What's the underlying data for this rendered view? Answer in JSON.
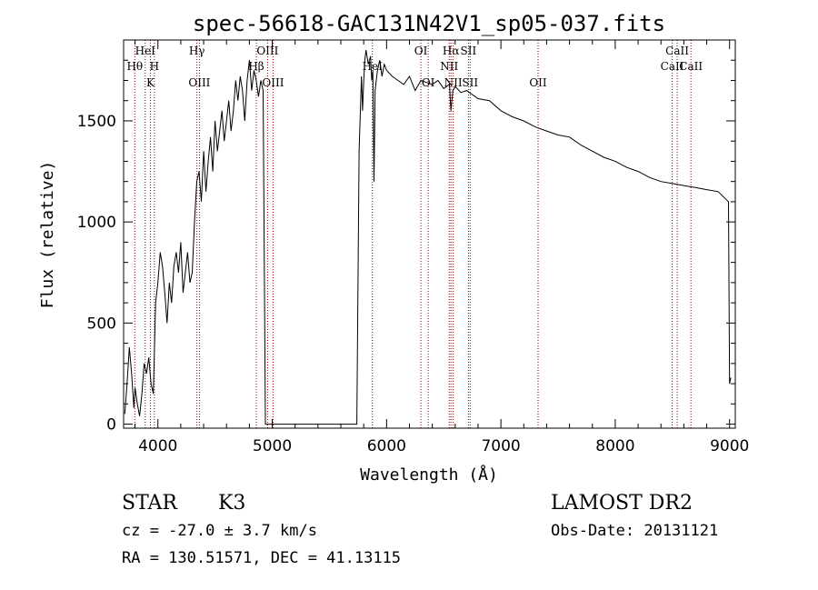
{
  "chart_data": {
    "type": "line",
    "title": "spec-56618-GAC131N42V1_sp05-037.fits",
    "xlabel": "Wavelength (Å)",
    "ylabel": "Flux (relative)",
    "xlim": [
      3700,
      9050
    ],
    "ylim": [
      -20,
      1900
    ],
    "x_ticks": [
      4000,
      5000,
      6000,
      7000,
      8000,
      9000
    ],
    "y_ticks": [
      0,
      500,
      1000,
      1500
    ],
    "line_color": "#000000",
    "marker_color": "#8b0000",
    "grid": false,
    "series": [
      {
        "x": [
          3710,
          3730,
          3750,
          3770,
          3790,
          3800,
          3820,
          3840,
          3860,
          3880,
          3900,
          3920,
          3940,
          3960,
          3980,
          4000,
          4020,
          4040,
          4060,
          4080,
          4100,
          4120,
          4140,
          4160,
          4180,
          4200,
          4220,
          4240,
          4260,
          4280,
          4300,
          4320,
          4340,
          4360,
          4380,
          4400,
          4420,
          4440,
          4460,
          4480,
          4500,
          4520,
          4540,
          4560,
          4580,
          4600,
          4620,
          4640,
          4660,
          4680,
          4700,
          4720,
          4740,
          4760,
          4780,
          4800,
          4820,
          4840,
          4860,
          4880,
          4900,
          4920,
          4940,
          5000,
          5200,
          5400,
          5600,
          5740,
          5760,
          5780,
          5790,
          5800,
          5810,
          5820,
          5840,
          5860,
          5870,
          5880,
          5890,
          5900,
          5920,
          5940,
          5960,
          5980,
          6000,
          6050,
          6100,
          6150,
          6200,
          6250,
          6300,
          6350,
          6400,
          6450,
          6500,
          6550,
          6563,
          6580,
          6600,
          6650,
          6700,
          6800,
          6900,
          7000,
          7100,
          7200,
          7300,
          7400,
          7500,
          7600,
          7700,
          7800,
          7900,
          8000,
          8100,
          8200,
          8300,
          8400,
          8500,
          8600,
          8700,
          8800,
          8900,
          8990,
          9000,
          9010
        ],
        "y": [
          50,
          200,
          380,
          250,
          80,
          180,
          100,
          40,
          150,
          300,
          250,
          330,
          200,
          150,
          600,
          700,
          850,
          780,
          650,
          500,
          700,
          600,
          780,
          850,
          750,
          900,
          650,
          750,
          850,
          700,
          750,
          1000,
          1200,
          1250,
          1100,
          1350,
          1150,
          1300,
          1420,
          1250,
          1500,
          1350,
          1450,
          1550,
          1400,
          1500,
          1600,
          1450,
          1550,
          1700,
          1600,
          1720,
          1650,
          1500,
          1700,
          1800,
          1650,
          1750,
          1700,
          1620,
          1700,
          1650,
          0,
          0,
          0,
          0,
          0,
          0,
          1350,
          1720,
          1550,
          1700,
          1800,
          1850,
          1780,
          1820,
          1700,
          1750,
          1200,
          1650,
          1750,
          1800,
          1720,
          1780,
          1750,
          1720,
          1700,
          1680,
          1720,
          1650,
          1700,
          1690,
          1680,
          1700,
          1660,
          1680,
          1550,
          1650,
          1670,
          1640,
          1650,
          1610,
          1600,
          1550,
          1520,
          1500,
          1470,
          1450,
          1430,
          1420,
          1380,
          1350,
          1320,
          1300,
          1270,
          1250,
          1220,
          1200,
          1190,
          1180,
          1170,
          1160,
          1150,
          1100,
          200,
          230
        ]
      }
    ],
    "line_markers": [
      {
        "x": 3798,
        "label": "Hθ",
        "row": 1
      },
      {
        "x": 3889,
        "label": "HeI",
        "row": 0
      },
      {
        "x": 3934,
        "label": "K",
        "row": 2
      },
      {
        "x": 3969,
        "label": "H",
        "row": 1
      },
      {
        "x": 4341,
        "label": "Hγ",
        "row": 0
      },
      {
        "x": 4363,
        "label": "OIII",
        "row": 2
      },
      {
        "x": 4861,
        "label": "Hβ",
        "row": 1
      },
      {
        "x": 4959,
        "label": "OIII",
        "row": 0
      },
      {
        "x": 5007,
        "label": "OIII",
        "row": 2
      },
      {
        "x": 5876,
        "label": "HeI",
        "row": 1
      },
      {
        "x": 6300,
        "label": "OI",
        "row": 0
      },
      {
        "x": 6364,
        "label": "OI",
        "row": 2
      },
      {
        "x": 6548,
        "label": "NII",
        "row": 1
      },
      {
        "x": 6563,
        "label": "Hα",
        "row": 0
      },
      {
        "x": 6583,
        "label": "NII",
        "row": 2
      },
      {
        "x": 6716,
        "label": "SII",
        "row": 0
      },
      {
        "x": 6731,
        "label": "SII",
        "row": 2
      },
      {
        "x": 7325,
        "label": "OII",
        "row": 2
      },
      {
        "x": 8498,
        "label": "CaII",
        "row": 1
      },
      {
        "x": 8542,
        "label": "CaII",
        "row": 0
      },
      {
        "x": 8662,
        "label": "CaII",
        "row": 1
      }
    ]
  },
  "info": {
    "class_label": "STAR",
    "subclass_label": "K3",
    "survey_label": "LAMOST DR2",
    "cz_text": "cz = -27.0 ± 3.7 km/s",
    "obs_date_text": "Obs-Date: 20131121",
    "radec_text": "RA = 130.51571, DEC =  41.13115"
  }
}
